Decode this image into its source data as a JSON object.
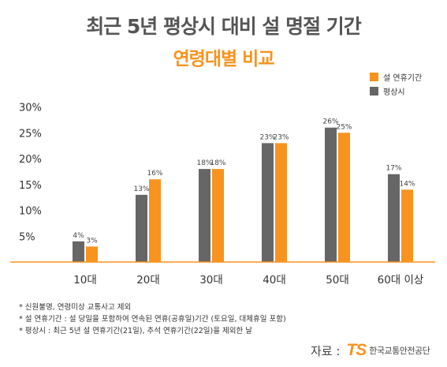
{
  "titles": {
    "main": "최근 5년 평상시 대비 설 명절 기간",
    "sub": "연령대별 비교"
  },
  "chart_data": {
    "type": "bar",
    "categories": [
      "10대",
      "20대",
      "30대",
      "40대",
      "50대",
      "60대 이상"
    ],
    "series": [
      {
        "name": "평상시",
        "values": [
          4,
          13,
          18,
          23,
          26,
          17
        ],
        "labels": [
          "4%",
          "13%",
          "18%",
          "23%",
          "26%",
          "17%"
        ],
        "color": "#666666"
      },
      {
        "name": "설 연휴기간",
        "values": [
          3,
          16,
          18,
          23,
          25,
          14
        ],
        "labels": [
          "3%",
          "16%",
          "18%",
          "23%",
          "25%",
          "14%"
        ],
        "color": "#f7931e"
      }
    ],
    "legend_order": [
      1,
      0
    ],
    "legend_placement": "top-right",
    "ylim": [
      0,
      30
    ],
    "yticks": [
      5,
      10,
      15,
      20,
      25,
      30
    ],
    "ytick_labels": [
      "5%",
      "10%",
      "15%",
      "20%",
      "25%",
      "30%"
    ],
    "grid": false,
    "axis_color": "#f7931e"
  },
  "notes": [
    "* 신원불명, 연령미상 교통사고 제외",
    "* 설 연휴기간 : 설 당일을 포함하여 연속된 연휴(공휴일)기간 (토요일, 대체휴일 포함)",
    "* 평상시 : 최근 5년 설 연휴기간(21일), 추석 연휴기간(22일)을 제외한 날"
  ],
  "source": {
    "label": "자료 :",
    "logo_mark": "TS",
    "logo_text": "한국교통안전공단"
  }
}
